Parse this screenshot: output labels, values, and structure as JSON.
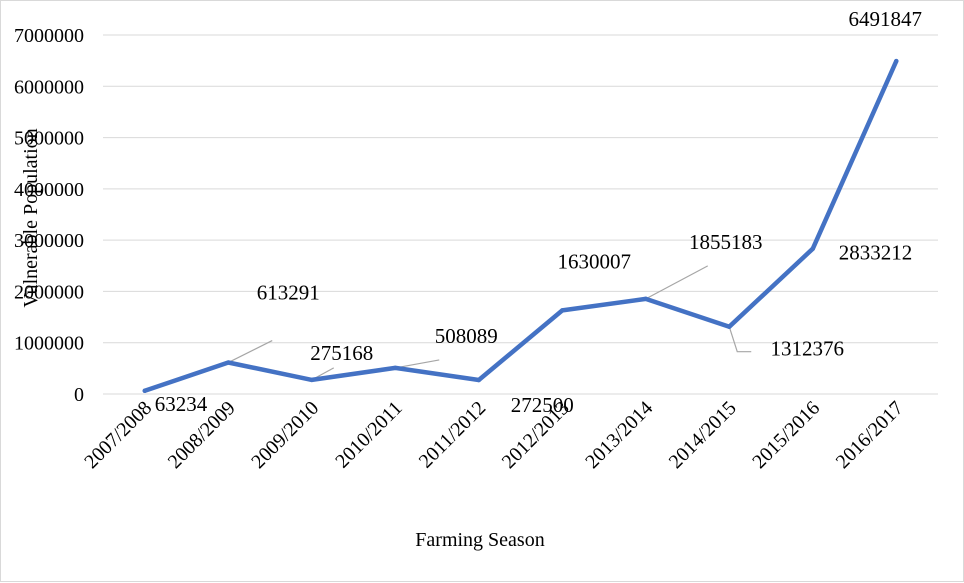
{
  "chart_data": {
    "type": "line",
    "xlabel": "Farming Season",
    "ylabel": "Vulnerable Population",
    "categories": [
      "2007/2008",
      "2008/2009",
      "2009/2010",
      "2010/2011",
      "2011/2012",
      "2012/2013",
      "2013/2014",
      "2014/2015",
      "2015/2016",
      "2016/2017"
    ],
    "series": [
      {
        "values": [
          63234,
          613291,
          275168,
          508089,
          272500,
          1630007,
          1855183,
          1312376,
          2833212,
          6491847
        ],
        "color": "#4472C4"
      }
    ],
    "data_labels": [
      "63234",
      "613291",
      "275168",
      "508089",
      "272500",
      "1630007",
      "1855183",
      "1312376",
      "2833212",
      "6491847"
    ],
    "ylim": [
      0,
      7000000
    ],
    "yticks": [
      0,
      1000000,
      2000000,
      3000000,
      4000000,
      5000000,
      6000000,
      7000000
    ],
    "ytick_labels": [
      "0",
      "1000000",
      "2000000",
      "3000000",
      "4000000",
      "5000000",
      "6000000",
      "7000000"
    ],
    "grid": true,
    "legend": "none",
    "gridline_color": "#d9d9d9",
    "leader_line_color": "#a6a6a6"
  }
}
